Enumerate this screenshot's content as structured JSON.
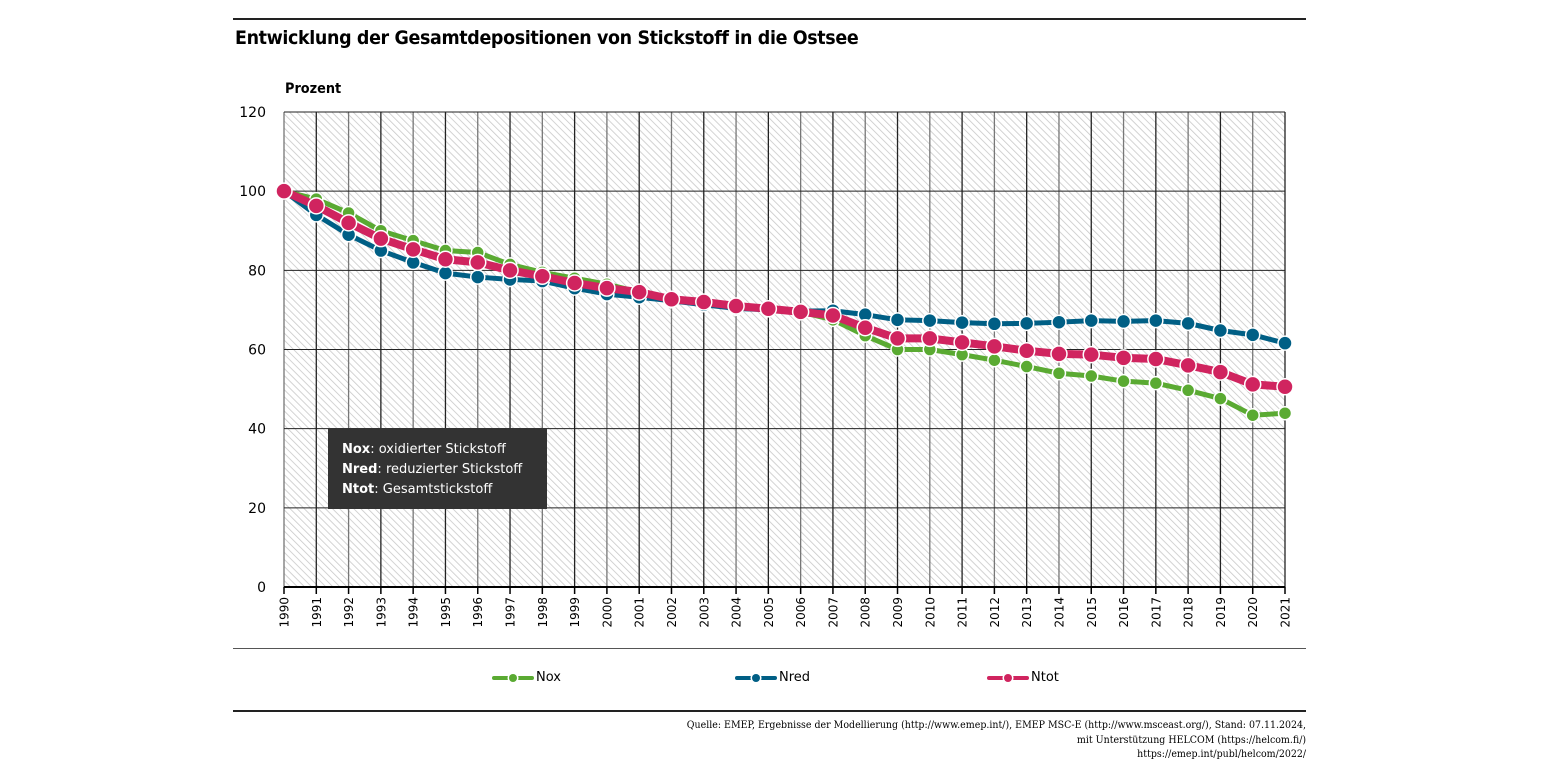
{
  "chart_data": {
    "type": "line",
    "title": "Entwicklung der Gesamtdepositionen von Stickstoff in die Ostsee",
    "ylabel": "Prozent",
    "xlabel": "",
    "ylim": [
      0,
      120
    ],
    "yticks": [
      0,
      20,
      40,
      60,
      80,
      100,
      120
    ],
    "grid": true,
    "legend_position": "bottom",
    "x": [
      1990,
      1991,
      1992,
      1993,
      1994,
      1995,
      1996,
      1997,
      1998,
      1999,
      2000,
      2001,
      2002,
      2003,
      2004,
      2005,
      2006,
      2007,
      2008,
      2009,
      2010,
      2011,
      2012,
      2013,
      2014,
      2015,
      2016,
      2017,
      2018,
      2019,
      2020,
      2021
    ],
    "series": [
      {
        "name": "Nox",
        "color": "#5aaa32",
        "values": [
          100,
          98,
          94.5,
          90,
          87.5,
          85,
          84.5,
          81.5,
          79.5,
          78,
          76.5,
          74.5,
          73,
          72,
          71,
          70.3,
          69.5,
          67.5,
          63.5,
          60,
          60,
          58.7,
          57.3,
          55.7,
          54,
          53.3,
          52,
          51.5,
          49.7,
          47.6,
          43.4,
          43.9
        ]
      },
      {
        "name": "Nred",
        "color": "#005f85",
        "values": [
          100,
          94,
          89,
          85,
          82,
          79.3,
          78.3,
          77.7,
          77.3,
          75.5,
          74,
          73.2,
          72.3,
          71.3,
          70.4,
          70,
          69.7,
          69.8,
          68.8,
          67.5,
          67.3,
          66.8,
          66.5,
          66.6,
          66.9,
          67.3,
          67.1,
          67.3,
          66.6,
          64.8,
          63.7,
          61.6
        ]
      },
      {
        "name": "Ntot",
        "color": "#d0245f",
        "values": [
          100,
          96.3,
          92,
          88,
          85.3,
          82.8,
          82,
          80,
          78.5,
          76.8,
          75.5,
          74.5,
          72.7,
          72,
          71,
          70.3,
          69.5,
          68.6,
          65.5,
          62.8,
          62.8,
          61.8,
          60.8,
          59.7,
          58.9,
          58.7,
          57.9,
          57.6,
          56,
          54.3,
          51.2,
          50.6
        ]
      }
    ]
  },
  "info_box": {
    "lines": [
      {
        "term": "Nox",
        "desc": "oxidierter Stickstoff"
      },
      {
        "term": "Nred",
        "desc": "reduzierter Stickstoff"
      },
      {
        "term": "Ntot",
        "desc": "Gesamtstickstoff"
      }
    ]
  },
  "source": {
    "lines": [
      "Quelle: EMEP, Ergebnisse der Modellierung (http://www.emep.int/), EMEP MSC-E (http://www.msceast.org/), Stand: 07.11.2024,",
      "mit Unterstützung HELCOM (https://helcom.fi/)",
      "https://emep.int/publ/helcom/2022/"
    ]
  }
}
